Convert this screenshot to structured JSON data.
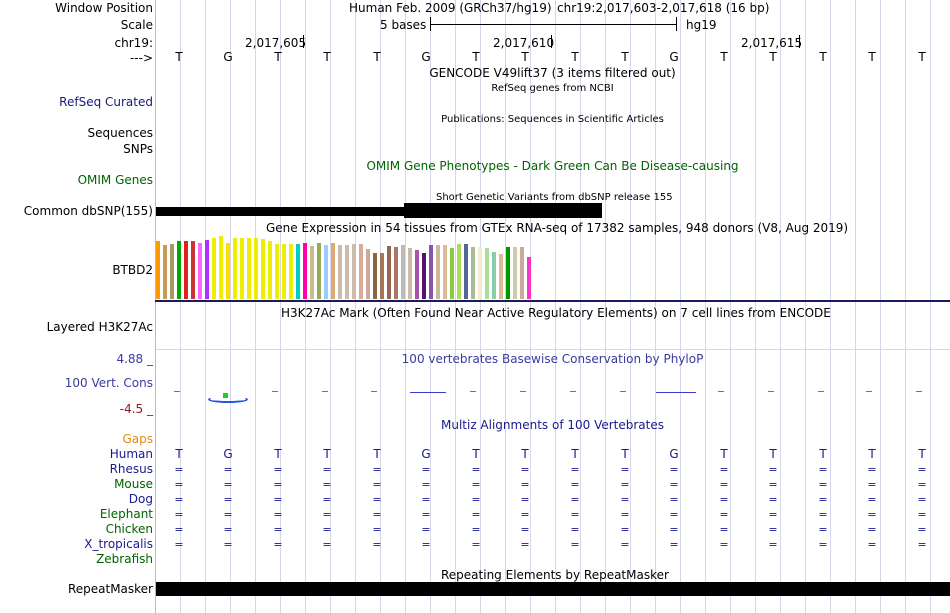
{
  "header": {
    "window_position_label": "Window Position",
    "scale_label": "Scale",
    "chrom_label": "chr19:",
    "strand_label": "--->",
    "assembly_title": "Human Feb. 2009 (GRCh37/hg19)",
    "position_text": "chr19:2,017,603-2,017,618 (16 bp)",
    "scale_text": "5 bases",
    "scale_db": "hg19",
    "ruler_ticks": [
      "2,017,605",
      "2,017,610",
      "2,017,615"
    ]
  },
  "sequence": [
    "T",
    "G",
    "T",
    "T",
    "T",
    "G",
    "T",
    "T",
    "T",
    "T",
    "G",
    "T",
    "T",
    "T",
    "T",
    "T"
  ],
  "tracks": {
    "gencode": {
      "title": "GENCODE V49lift37 (3 items filtered out)"
    },
    "refseq": {
      "label": "RefSeq Curated",
      "title": "RefSeq genes from NCBI",
      "color": "#1a1a7c"
    },
    "publications": {
      "label": "Sequences",
      "title": "Publications: Sequences in Scientific Articles"
    },
    "snps_label": "SNPs",
    "omim": {
      "label": "OMIM Genes",
      "title": "OMIM Gene Phenotypes - Dark Green Can Be Disease-causing",
      "color": "#006400"
    },
    "dbsnp": {
      "label": "Common dbSNP(155)",
      "title": "Short Genetic Variants from dbSNP release 155"
    },
    "gtex": {
      "label": "BTBD2",
      "title": "Gene Expression in 54 tissues from GTEx RNA-seq of 17382 samples, 948 donors (V8, Aug 2019)"
    },
    "h3k27ac": {
      "label": "Layered H3K27Ac",
      "title": "H3K27Ac Mark (Often Found Near Active Regulatory Elements) on 7 cell lines from ENCODE"
    },
    "conservation": {
      "label": "100 Vert. Cons",
      "title": "100 vertebrates Basewise Conservation by PhyloP",
      "max": "4.88 _",
      "min": "-4.5 _",
      "color": "#3a3aa0"
    },
    "multiz": {
      "title": "Multiz Alignments of 100 Vertebrates",
      "gaps_label": "Gaps",
      "species": [
        {
          "name": "Human",
          "color": "#1a1a8c"
        },
        {
          "name": "Rhesus",
          "color": "#1a1a8c"
        },
        {
          "name": "Mouse",
          "color": "#006400"
        },
        {
          "name": "Dog",
          "color": "#1a1a8c"
        },
        {
          "name": "Elephant",
          "color": "#006400"
        },
        {
          "name": "Chicken",
          "color": "#006400"
        },
        {
          "name": "X_tropicalis",
          "color": "#1a1a8c"
        },
        {
          "name": "Zebrafish",
          "color": "#006400"
        }
      ],
      "gap_symbol": "="
    },
    "repeatmasker": {
      "label": "RepeatMasker",
      "title": "Repeating Elements by RepeatMasker"
    }
  },
  "gtex_values": [
    0.9,
    0.84,
    0.86,
    0.9,
    0.9,
    0.9,
    0.87,
    0.92,
    0.96,
    0.99,
    0.88,
    0.95,
    0.96,
    0.95,
    0.96,
    0.93,
    0.9,
    0.86,
    0.86,
    0.86,
    0.86,
    0.87,
    0.83,
    0.88,
    0.84,
    0.88,
    0.84,
    0.84,
    0.86,
    0.86,
    0.78,
    0.72,
    0.72,
    0.83,
    0.82,
    0.85,
    0.8,
    0.77,
    0.72,
    0.84,
    0.84,
    0.84,
    0.8,
    0.86,
    0.86,
    0.82,
    0.82,
    0.8,
    0.74,
    0.7,
    0.82,
    0.82,
    0.82,
    0.65
  ],
  "gtex_colors": [
    "#ff9900",
    "#cc9955",
    "#aa9966",
    "#00aa00",
    "#dd2222",
    "#cc3333",
    "#ff66ff",
    "#aa33ff",
    "#eeee00",
    "#eeee00",
    "#ffdd00",
    "#eeee00",
    "#eeee00",
    "#eeee00",
    "#eeee00",
    "#eeee00",
    "#eeee00",
    "#eeee00",
    "#eeee00",
    "#eeee00",
    "#00cccc",
    "#ff00aa",
    "#ccbb88",
    "#99aa55",
    "#99ccff",
    "#ddaa77",
    "#ccbbaa",
    "#ccbbaa",
    "#ccbbaa",
    "#ddaa99",
    "#ccaa99",
    "#886644",
    "#aa7755",
    "#996655",
    "#aa7766",
    "#bbbbbb",
    "#ccbbaa",
    "#aa55aa",
    "#551177",
    "#8855aa",
    "#ccbb99",
    "#ddbb99",
    "#88cc44",
    "#aadd55",
    "#556699",
    "#aabb99",
    "#eeeecc",
    "#aadd99",
    "#88ccaa",
    "#ddbb99",
    "#009900",
    "#ccccaa",
    "#ccaa99",
    "#ff33cc"
  ]
}
